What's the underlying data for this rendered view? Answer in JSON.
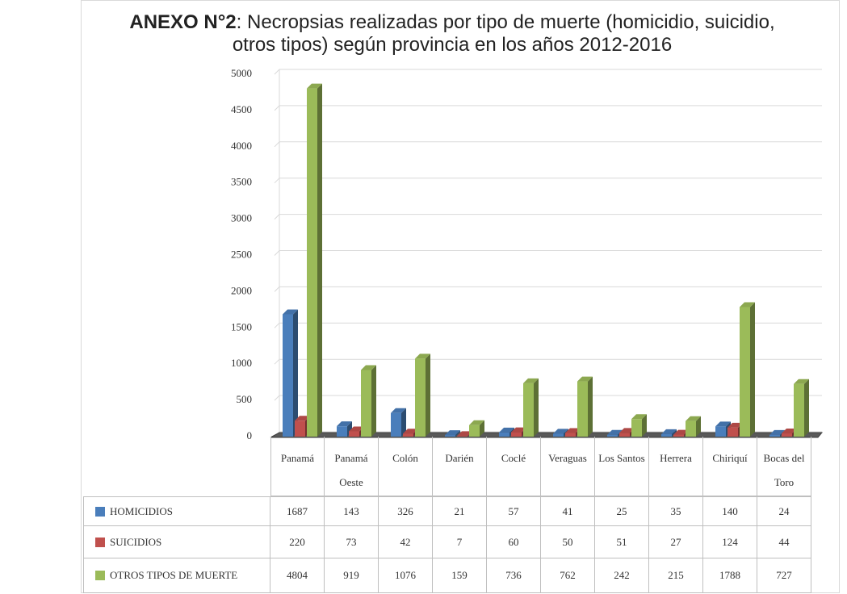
{
  "chart_data": {
    "type": "bar3d",
    "title_label": "ANEXO N°2",
    "title": ": Necropsias realizadas por tipo de muerte (homicidio, suicidio, otros tipos) según provincia en los años 2012-2016",
    "categories": [
      "Panamá",
      "Panamá Oeste",
      "Colón",
      "Darién",
      "Coclé",
      "Veraguas",
      "Los Santos",
      "Herrera",
      "Chiriquí",
      "Bocas del Toro"
    ],
    "series": [
      {
        "name": "HOMICIDIOS",
        "color": "#4a7ebb",
        "values": [
          1687,
          143,
          326,
          21,
          57,
          41,
          25,
          35,
          140,
          24
        ]
      },
      {
        "name": "SUICIDIOS",
        "color": "#c0504d",
        "values": [
          220,
          73,
          42,
          7,
          60,
          50,
          51,
          27,
          124,
          44
        ]
      },
      {
        "name": "OTROS TIPOS DE MUERTE",
        "color": "#9bbb59",
        "values": [
          4804,
          919,
          1076,
          159,
          736,
          762,
          242,
          215,
          1788,
          727
        ]
      }
    ],
    "ylim": [
      0,
      5000
    ],
    "yticks": [
      0,
      500,
      1000,
      1500,
      2000,
      2500,
      3000,
      3500,
      4000,
      4500,
      5000
    ],
    "grid": true
  }
}
